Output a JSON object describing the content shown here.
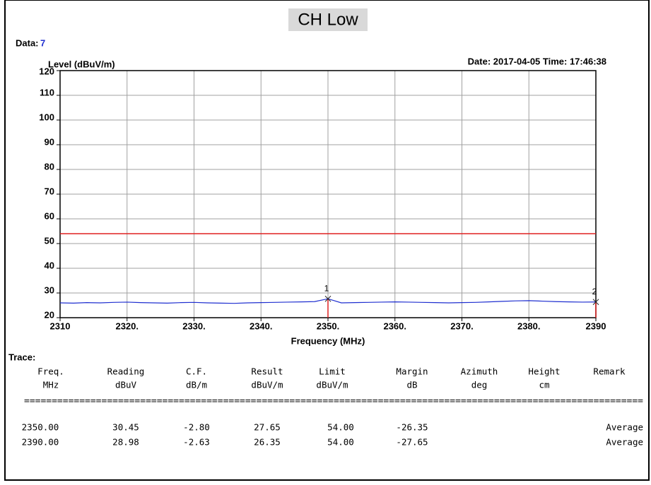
{
  "chart_data": {
    "type": "line",
    "subtitle": "CH Low",
    "data_id": {
      "label": "Data:",
      "value": 7
    },
    "date": "Date: 2017-04-05 Time: 17:46:38",
    "ylabel": "Level (dBuV/m)",
    "xlabel": "Frequency (MHz)",
    "xlim": [
      2310,
      2390
    ],
    "ylim": [
      20,
      120
    ],
    "xticks": [
      2310,
      {
        "value": 2320,
        "label": "2320."
      },
      {
        "value": 2330,
        "label": "2330."
      },
      {
        "value": 2340,
        "label": "2340."
      },
      {
        "value": 2350,
        "label": "2350."
      },
      {
        "value": 2360,
        "label": "2360."
      },
      {
        "value": 2370,
        "label": "2370."
      },
      {
        "value": 2380,
        "label": "2380."
      },
      2390
    ],
    "yticks": [
      20,
      30,
      40,
      50,
      60,
      70,
      80,
      90,
      100,
      110,
      120
    ],
    "grid": true,
    "limit": {
      "value": 54,
      "color": "#e02020"
    },
    "series": [
      {
        "color": "#1f2fd0",
        "x": [
          2310,
          2312,
          2314,
          2316,
          2318,
          2320,
          2322,
          2324,
          2326,
          2328,
          2330,
          2332,
          2334,
          2336,
          2338,
          2340,
          2342,
          2344,
          2346,
          2348,
          2350,
          2352,
          2354,
          2356,
          2358,
          2360,
          2362,
          2364,
          2366,
          2368,
          2370,
          2372,
          2374,
          2376,
          2378,
          2380,
          2382,
          2384,
          2386,
          2388,
          2390
        ],
        "values": [
          26.0,
          25.9,
          26.1,
          26.0,
          26.2,
          26.3,
          26.1,
          26.0,
          25.9,
          26.1,
          26.2,
          26.0,
          25.9,
          25.8,
          26.0,
          26.1,
          26.2,
          26.3,
          26.4,
          26.5,
          27.65,
          26.0,
          26.1,
          26.2,
          26.3,
          26.4,
          26.3,
          26.2,
          26.1,
          26.0,
          26.1,
          26.2,
          26.4,
          26.6,
          26.8,
          26.9,
          26.7,
          26.5,
          26.4,
          26.3,
          26.35
        ]
      }
    ],
    "markers": [
      {
        "label": "1",
        "x": 2350,
        "y": 27.65,
        "color": "#e02020"
      },
      {
        "label": "2",
        "x": 2390,
        "y": 26.35,
        "color": "#e02020"
      }
    ]
  },
  "table": {
    "title": "Trace:",
    "columns": [
      {
        "name": "Freq.",
        "unit": "MHz"
      },
      {
        "name": "Reading",
        "unit": "dBuV"
      },
      {
        "name": "C.F.",
        "unit": "dB/m"
      },
      {
        "name": "Result",
        "unit": "dBuV/m"
      },
      {
        "name": "Limit",
        "unit": "dBuV/m"
      },
      {
        "name": "Margin",
        "unit": "dB"
      },
      {
        "name": "Azimuth",
        "unit": "deg"
      },
      {
        "name": "Height",
        "unit": "cm"
      },
      {
        "name": "Remark"
      }
    ],
    "separator": "================================================================================================================",
    "rows": [
      {
        "freq": "2350.00",
        "reading": "30.45",
        "cf": "-2.80",
        "result": "27.65",
        "limit": "54.00",
        "margin": "-26.35",
        "remark": "Average"
      },
      {
        "freq": "2390.00",
        "reading": "28.98",
        "cf": "-2.63",
        "result": "26.35",
        "limit": "54.00",
        "margin": "-27.65",
        "remark": "Average"
      }
    ]
  }
}
